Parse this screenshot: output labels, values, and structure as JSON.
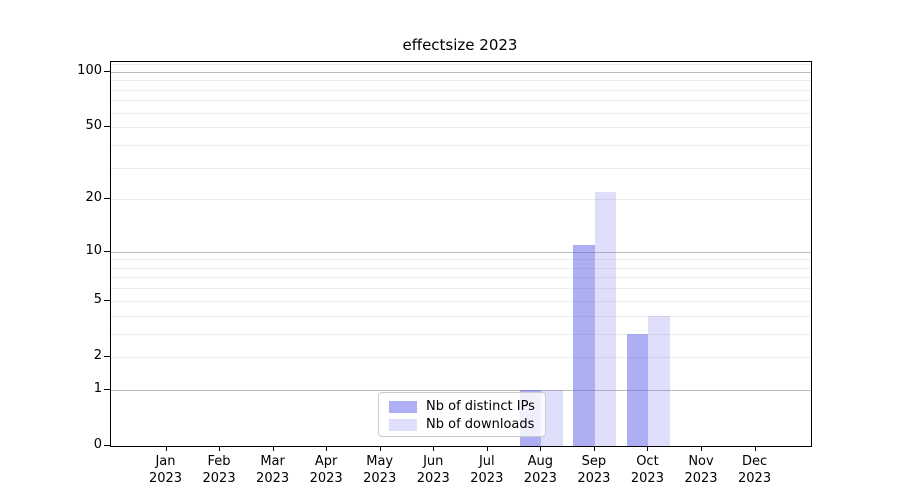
{
  "chart_data": {
    "type": "bar",
    "title": "effectsize 2023",
    "categories": [
      "Jan",
      "Feb",
      "Mar",
      "Apr",
      "May",
      "Jun",
      "Jul",
      "Aug",
      "Sep",
      "Oct",
      "Nov",
      "Dec"
    ],
    "category_sub": "2023",
    "series": [
      {
        "name": "Nb of distinct IPs",
        "values": [
          0,
          0,
          0,
          0,
          0,
          0,
          0,
          1,
          11,
          3,
          0,
          0
        ],
        "color": "rgba(93,93,234,0.5)"
      },
      {
        "name": "Nb of downloads",
        "values": [
          0,
          0,
          0,
          0,
          0,
          0,
          0,
          1,
          22,
          4,
          0,
          0
        ],
        "color": "rgba(93,93,234,0.2)"
      }
    ],
    "yscale": "log1p",
    "ylim": [
      0,
      113
    ],
    "yticks": [
      0,
      1,
      2,
      5,
      10,
      20,
      50,
      100
    ],
    "grid_major": [
      1,
      10,
      100
    ],
    "grid_minor": [
      2,
      3,
      4,
      5,
      6,
      7,
      8,
      9,
      20,
      30,
      40,
      50,
      60,
      70,
      80,
      90,
      110
    ],
    "legend_position": "lower center inside",
    "grid": true
  },
  "colors": {
    "grid_major": "#bdbdbd",
    "grid_minor": "#ededed",
    "spine": "#000000",
    "bar_base": "#5d5dea"
  }
}
